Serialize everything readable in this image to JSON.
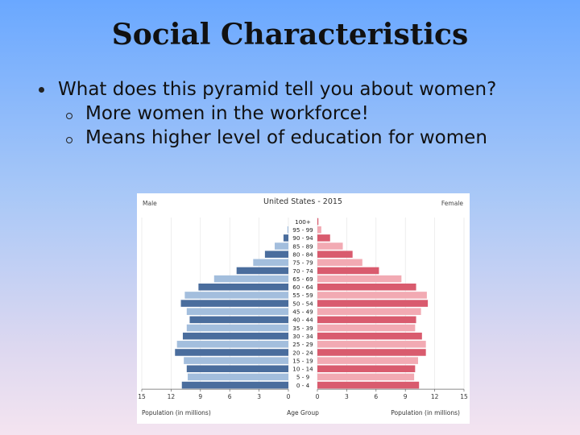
{
  "slide": {
    "title": "Social Characteristics",
    "bullet_main": "What does this pyramid tell you about women?",
    "sub_bullets": [
      "More women in the workforce!",
      "Means higher level of education for women"
    ]
  },
  "chart_data": {
    "type": "bar",
    "title": "United States - 2015",
    "left_label": "Male",
    "right_label": "Female",
    "xlabel_left": "Population (in millions)",
    "xlabel_center": "Age Group",
    "xlabel_right": "Population (in millions)",
    "xlim": [
      0,
      15
    ],
    "xticks": [
      15,
      12,
      9,
      6,
      3,
      0
    ],
    "categories": [
      "100+",
      "95 - 99",
      "90 - 94",
      "85 - 89",
      "80 - 84",
      "75 - 79",
      "70 - 74",
      "65 - 69",
      "60 - 64",
      "55 - 59",
      "50 - 54",
      "45 - 49",
      "40 - 44",
      "35 - 39",
      "30 - 34",
      "25 - 29",
      "20 - 24",
      "15 - 19",
      "10 - 14",
      "5 - 9",
      "0 - 4"
    ],
    "series": [
      {
        "name": "Male",
        "values": [
          0.0,
          0.1,
          0.5,
          1.4,
          2.4,
          3.6,
          5.3,
          7.6,
          9.2,
          10.6,
          11.0,
          10.4,
          10.1,
          10.4,
          10.8,
          11.4,
          11.6,
          10.7,
          10.4,
          10.3,
          10.9
        ]
      },
      {
        "name": "Female",
        "values": [
          0.1,
          0.4,
          1.3,
          2.6,
          3.6,
          4.6,
          6.3,
          8.6,
          10.1,
          11.2,
          11.3,
          10.6,
          10.1,
          10.0,
          10.7,
          11.1,
          11.1,
          10.3,
          10.0,
          9.9,
          10.4
        ]
      }
    ],
    "colors": {
      "male_light": "#a3bedd",
      "male_dark": "#4a6d9d",
      "female_light": "#f2aab3",
      "female_dark": "#d95b6e"
    }
  }
}
